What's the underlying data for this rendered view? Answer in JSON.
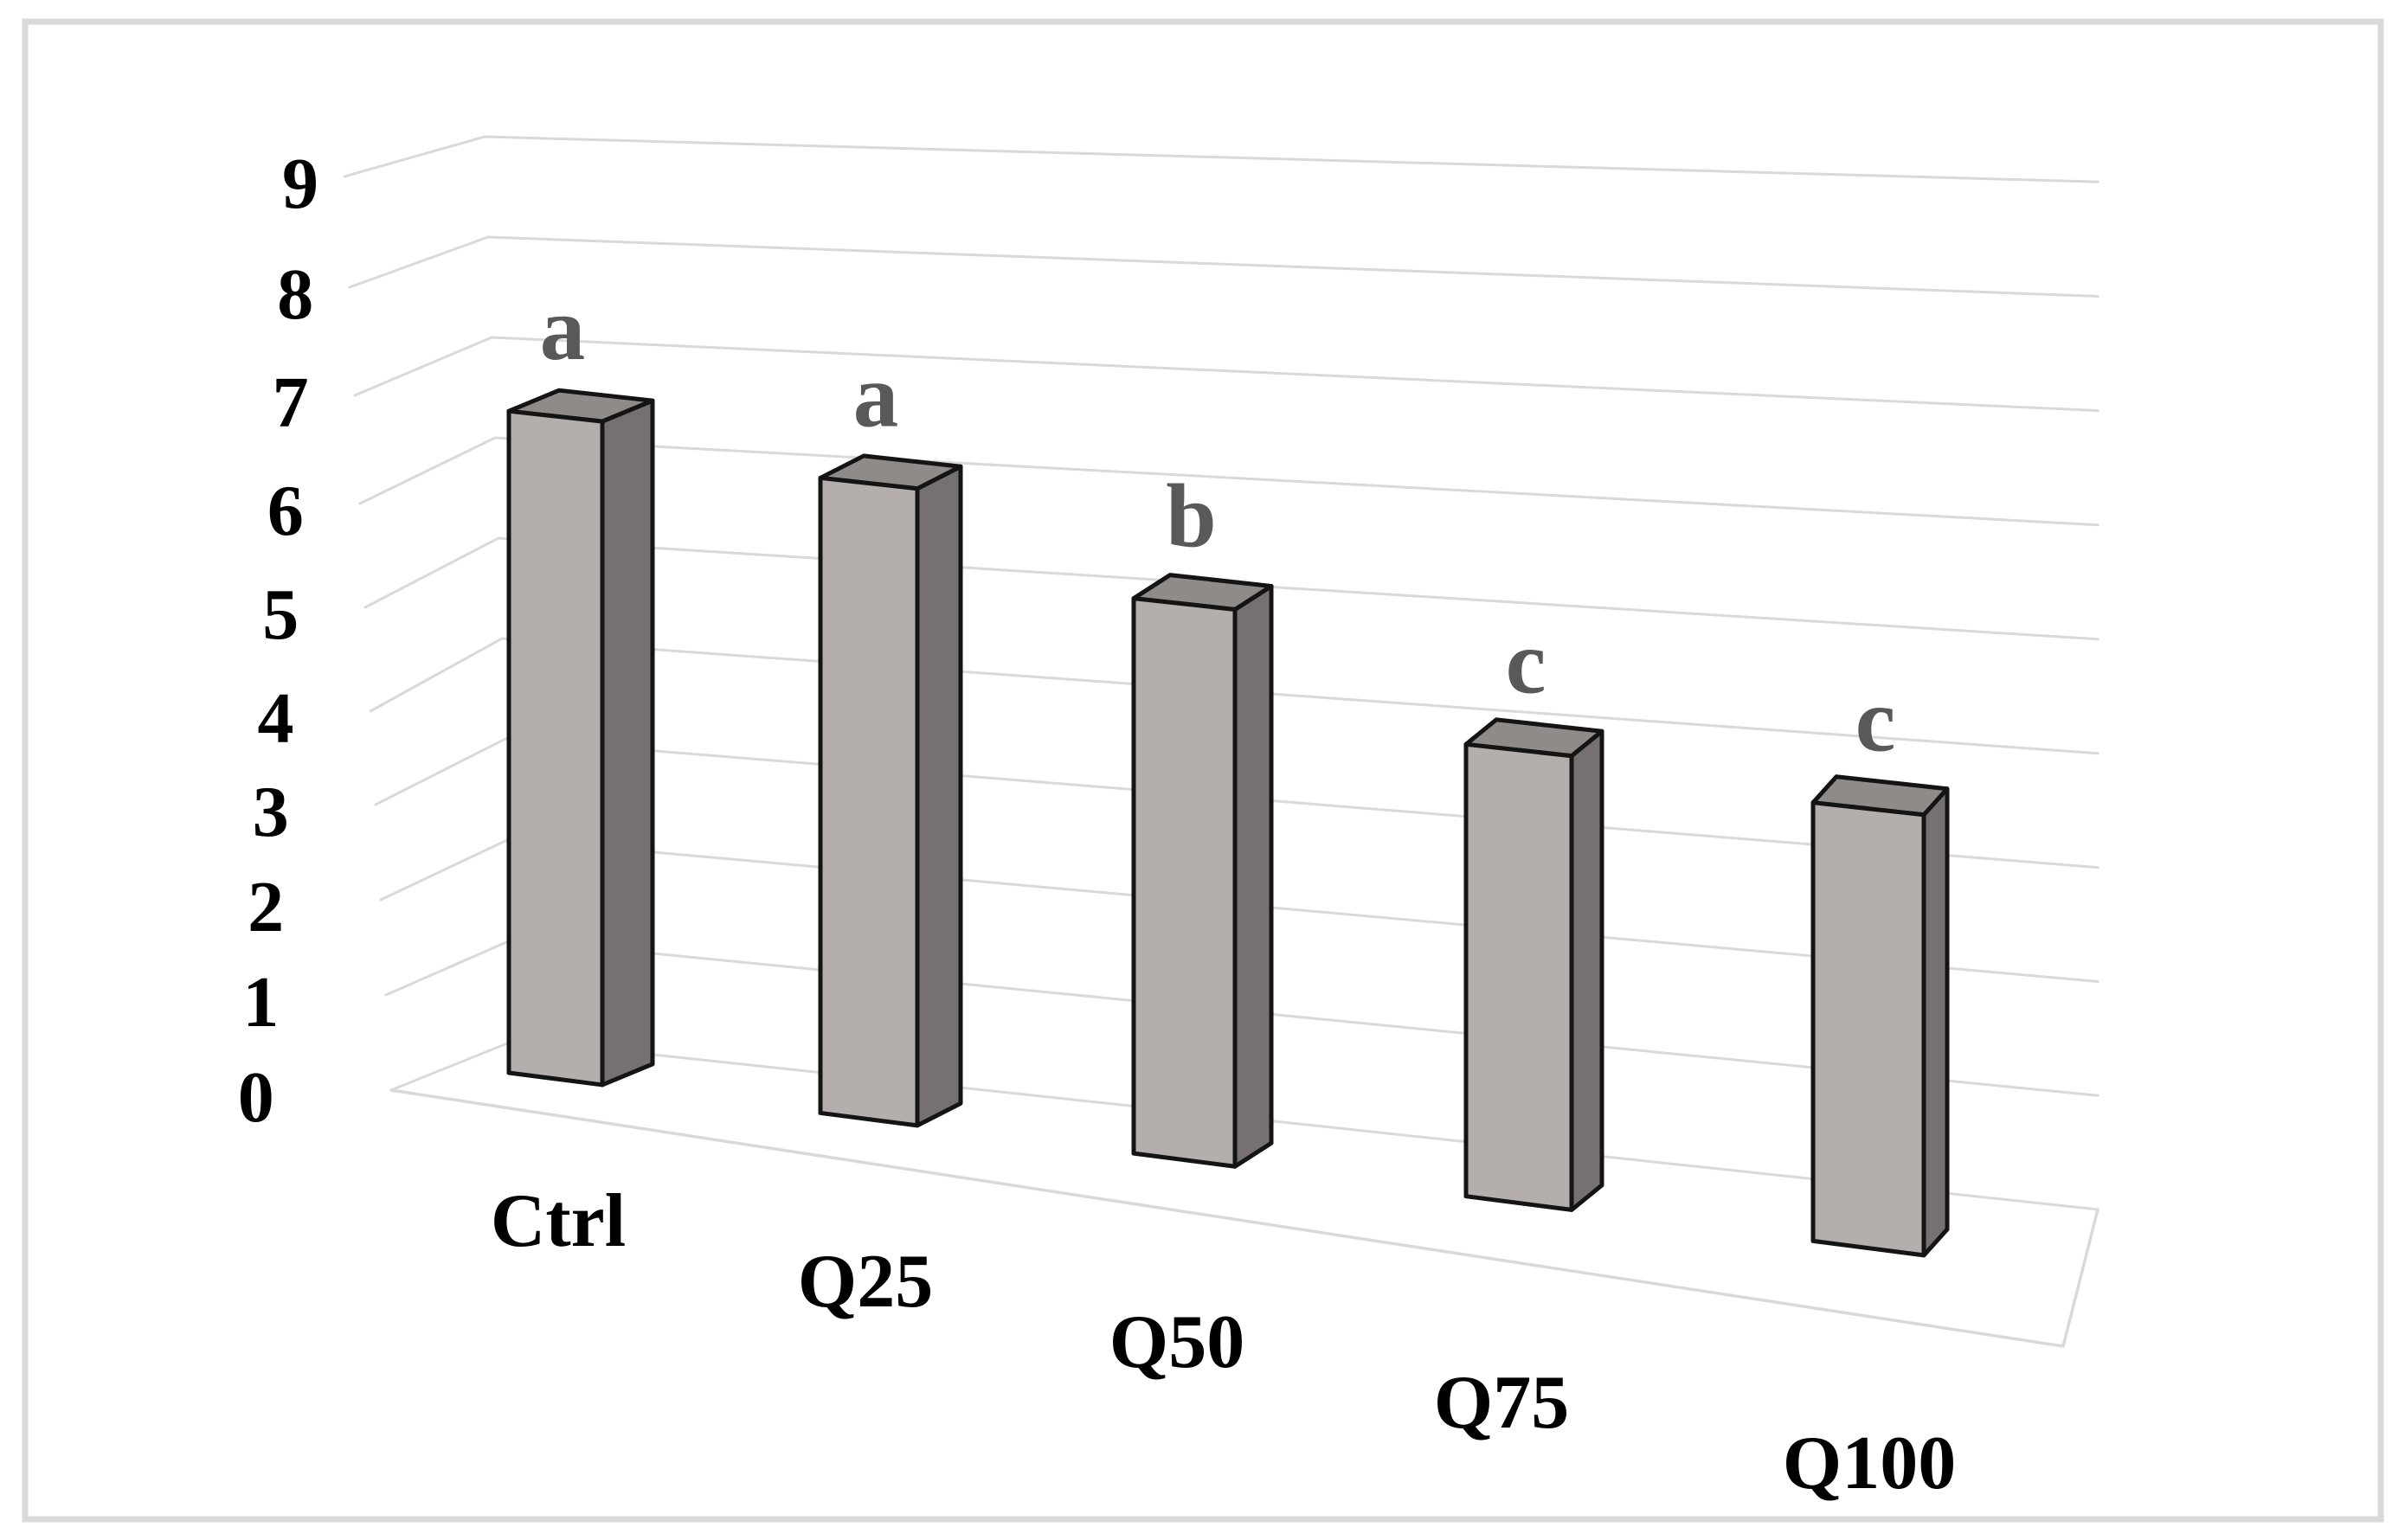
{
  "chart_data": {
    "type": "bar",
    "subtype": "3d-column",
    "title": "",
    "xlabel": "",
    "ylabel": "",
    "categories": [
      "Ctrl",
      "Q25",
      "Q50",
      "Q75",
      "Q100"
    ],
    "values": [
      6.4,
      5.8,
      4.8,
      3.7,
      3.4
    ],
    "significance_letters": [
      "a",
      "a",
      "b",
      "c",
      "c"
    ],
    "yticks": [
      0,
      1,
      2,
      3,
      4,
      5,
      6,
      7,
      8,
      9
    ],
    "ylim": [
      0,
      9
    ],
    "grid": true,
    "legend": false,
    "colors": {
      "bar_front": "#b4afac",
      "bar_side": "#767170",
      "bar_top": "#8f8b89",
      "bar_outline": "#141414",
      "gridline": "#d9d9d9",
      "frame_border": "#d9d9d9",
      "significance_letter": "#595959",
      "axis_text": "#000000",
      "background": "#ffffff"
    }
  }
}
